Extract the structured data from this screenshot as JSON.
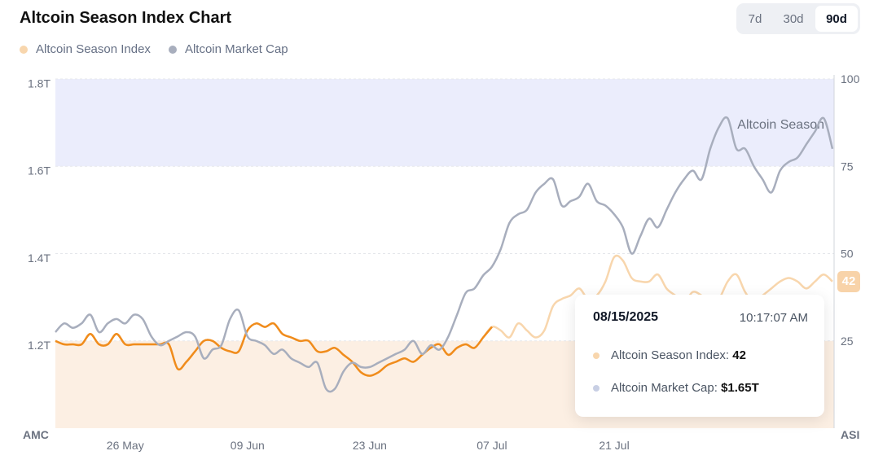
{
  "header": {
    "title": "Altcoin Season Index Chart",
    "ranges": [
      "7d",
      "30d",
      "90d"
    ],
    "active_range": "90d"
  },
  "colors": {
    "index_dim": "#f8d6ad",
    "index_active": "#f08c1c",
    "market_cap": "#a8aebd",
    "market_cap_highlight": "#b9c5ea",
    "altcoin_band": "#ebedfc",
    "bitcoin_band": "#fcefe3"
  },
  "chart_data": {
    "type": "line",
    "title": "Altcoin Season Index Chart",
    "x": [
      "2025-05-18",
      "2025-05-19",
      "2025-05-20",
      "2025-05-21",
      "2025-05-22",
      "2025-05-23",
      "2025-05-24",
      "2025-05-25",
      "2025-05-26",
      "2025-05-27",
      "2025-05-28",
      "2025-05-29",
      "2025-05-30",
      "2025-05-31",
      "2025-06-01",
      "2025-06-02",
      "2025-06-03",
      "2025-06-04",
      "2025-06-05",
      "2025-06-06",
      "2025-06-07",
      "2025-06-08",
      "2025-06-09",
      "2025-06-10",
      "2025-06-11",
      "2025-06-12",
      "2025-06-13",
      "2025-06-14",
      "2025-06-15",
      "2025-06-16",
      "2025-06-17",
      "2025-06-18",
      "2025-06-19",
      "2025-06-20",
      "2025-06-21",
      "2025-06-22",
      "2025-06-23",
      "2025-06-24",
      "2025-06-25",
      "2025-06-26",
      "2025-06-27",
      "2025-06-28",
      "2025-06-29",
      "2025-06-30",
      "2025-07-01",
      "2025-07-02",
      "2025-07-03",
      "2025-07-04",
      "2025-07-05",
      "2025-07-06",
      "2025-07-07",
      "2025-07-08",
      "2025-07-09",
      "2025-07-10",
      "2025-07-11",
      "2025-07-12",
      "2025-07-13",
      "2025-07-14",
      "2025-07-15",
      "2025-07-16",
      "2025-07-17",
      "2025-07-18",
      "2025-07-19",
      "2025-07-20",
      "2025-07-21",
      "2025-07-22",
      "2025-07-23",
      "2025-07-24",
      "2025-07-25",
      "2025-07-26",
      "2025-07-27",
      "2025-07-28",
      "2025-07-29",
      "2025-07-30",
      "2025-07-31",
      "2025-08-01",
      "2025-08-02",
      "2025-08-03",
      "2025-08-04",
      "2025-08-05",
      "2025-08-06",
      "2025-08-07",
      "2025-08-08",
      "2025-08-09",
      "2025-08-10",
      "2025-08-11",
      "2025-08-12",
      "2025-08-13",
      "2025-08-14",
      "2025-08-15"
    ],
    "x_ticks": [
      "26 May",
      "09 Jun",
      "23 Jun",
      "07 Jul",
      "21 Jul"
    ],
    "left_axis": {
      "label": "AMC",
      "ticks": [
        "1.2T",
        "1.4T",
        "1.6T",
        "1.8T"
      ],
      "range": [
        1.01,
        1.81
      ]
    },
    "right_axis": {
      "label": "ASI",
      "ticks": [
        "25",
        "50",
        "75",
        "100"
      ],
      "range": [
        0,
        100
      ]
    },
    "bands": [
      {
        "from": 75,
        "to": 100,
        "label": "Altcoin Season"
      },
      {
        "from": 0,
        "to": 25,
        "label": ""
      }
    ],
    "series": [
      {
        "name": "Altcoin Season Index",
        "axis": "right",
        "values": [
          25,
          24,
          24,
          24,
          27,
          24,
          24,
          27,
          24,
          24,
          24,
          24,
          24,
          24,
          17,
          19,
          22,
          25,
          25,
          23,
          22,
          22,
          28,
          30,
          29,
          30,
          27,
          26,
          25,
          25,
          22,
          22,
          23,
          21,
          19,
          16,
          15,
          16,
          18,
          19,
          20,
          19,
          21,
          23,
          24,
          21,
          23,
          24,
          23,
          26,
          29,
          28,
          26,
          30,
          28,
          26,
          28,
          35,
          37,
          38,
          40,
          37,
          38,
          42,
          49,
          48,
          43,
          42,
          42,
          44,
          40,
          38,
          36,
          39,
          38,
          36,
          37,
          42,
          44,
          39,
          36,
          38,
          40,
          42,
          43,
          42,
          40,
          42,
          44,
          42
        ]
      },
      {
        "name": "Altcoin Market Cap",
        "axis": "left",
        "unit": "T",
        "values": [
          1.23,
          1.25,
          1.24,
          1.25,
          1.27,
          1.23,
          1.25,
          1.26,
          1.25,
          1.27,
          1.26,
          1.22,
          1.2,
          1.21,
          1.22,
          1.23,
          1.22,
          1.17,
          1.19,
          1.2,
          1.26,
          1.28,
          1.22,
          1.21,
          1.2,
          1.18,
          1.19,
          1.17,
          1.16,
          1.15,
          1.16,
          1.1,
          1.1,
          1.14,
          1.16,
          1.15,
          1.15,
          1.16,
          1.17,
          1.18,
          1.19,
          1.21,
          1.18,
          1.2,
          1.19,
          1.22,
          1.27,
          1.32,
          1.33,
          1.36,
          1.38,
          1.42,
          1.48,
          1.5,
          1.51,
          1.55,
          1.57,
          1.58,
          1.52,
          1.53,
          1.54,
          1.57,
          1.53,
          1.52,
          1.5,
          1.47,
          1.41,
          1.45,
          1.49,
          1.47,
          1.51,
          1.55,
          1.58,
          1.6,
          1.58,
          1.65,
          1.7,
          1.72,
          1.65,
          1.65,
          1.61,
          1.58,
          1.55,
          1.6,
          1.62,
          1.63,
          1.66,
          1.69,
          1.72,
          1.65
        ]
      }
    ],
    "grid": true
  },
  "tooltip": {
    "date": "08/15/2025",
    "time": "10:17:07 AM",
    "index_label": "Altcoin Season Index:",
    "index_value": "42",
    "mcap_label": "Altcoin Market Cap:",
    "mcap_value": "$1.65T"
  },
  "current_badge": "42"
}
